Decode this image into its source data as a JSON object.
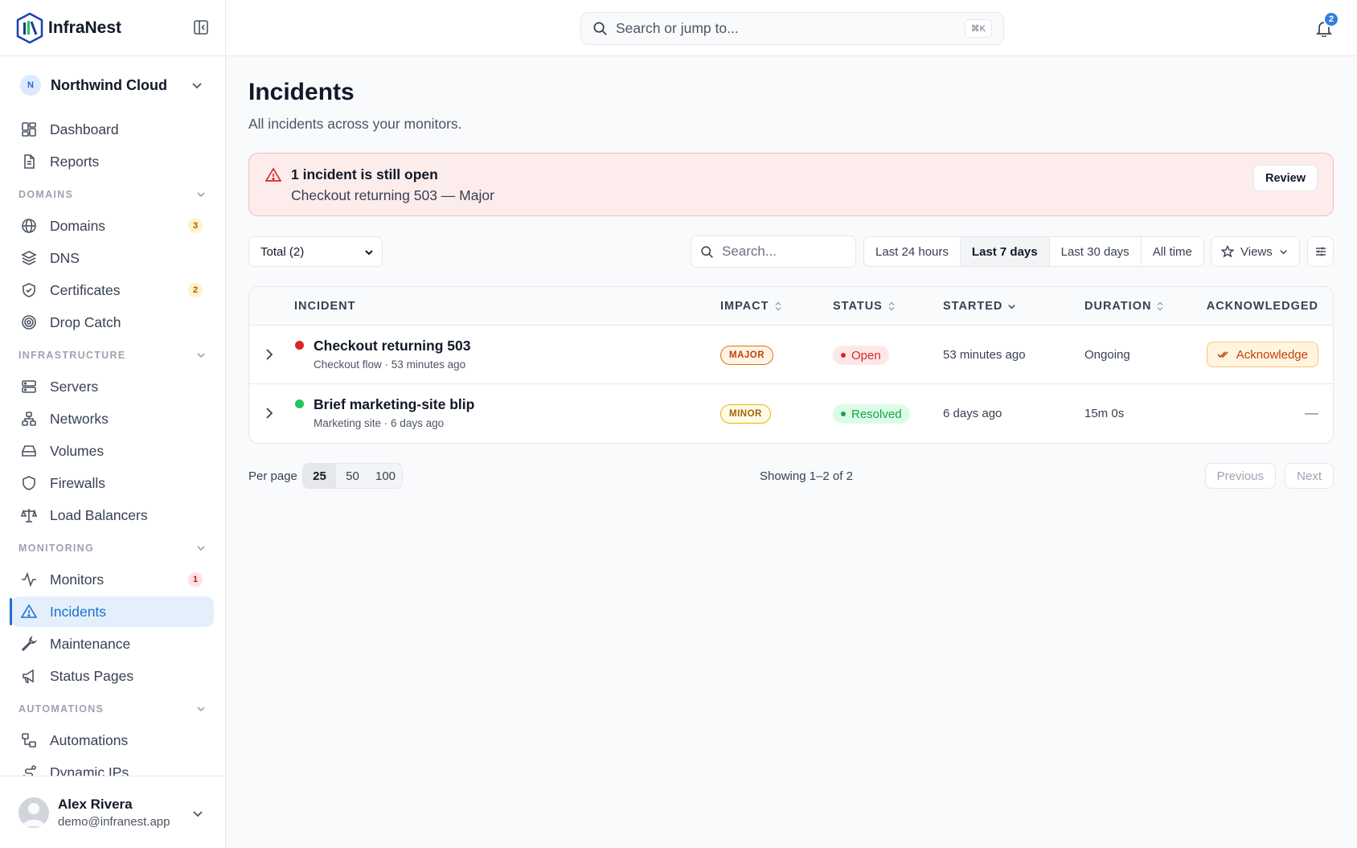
{
  "brand": {
    "name": "InfraNest"
  },
  "org": {
    "initial": "N",
    "name": "Northwind Cloud"
  },
  "nav": {
    "top": [
      {
        "label": "Dashboard",
        "icon": "dashboard-icon"
      },
      {
        "label": "Reports",
        "icon": "document-icon"
      }
    ],
    "sections": [
      {
        "title": "DOMAINS",
        "items": [
          {
            "label": "Domains",
            "icon": "globe-icon",
            "count": "3"
          },
          {
            "label": "DNS",
            "icon": "layers-icon"
          },
          {
            "label": "Certificates",
            "icon": "shield-check-icon",
            "count": "2"
          },
          {
            "label": "Drop Catch",
            "icon": "target-icon"
          }
        ]
      },
      {
        "title": "INFRASTRUCTURE",
        "items": [
          {
            "label": "Servers",
            "icon": "server-icon"
          },
          {
            "label": "Networks",
            "icon": "network-icon"
          },
          {
            "label": "Volumes",
            "icon": "drive-icon"
          },
          {
            "label": "Firewalls",
            "icon": "shield-icon"
          },
          {
            "label": "Load Balancers",
            "icon": "scale-icon"
          }
        ]
      },
      {
        "title": "MONITORING",
        "items": [
          {
            "label": "Monitors",
            "icon": "pulse-icon",
            "count": "1"
          },
          {
            "label": "Incidents",
            "icon": "warning-icon",
            "active": true
          },
          {
            "label": "Maintenance",
            "icon": "wrench-icon"
          },
          {
            "label": "Status Pages",
            "icon": "megaphone-icon"
          }
        ]
      },
      {
        "title": "AUTOMATIONS",
        "items": [
          {
            "label": "Automations",
            "icon": "workflow-icon"
          },
          {
            "label": "Dynamic IPs",
            "icon": "route-icon"
          }
        ]
      }
    ]
  },
  "user": {
    "name": "Alex Rivera",
    "email": "demo@infranest.app"
  },
  "topbar": {
    "search_placeholder": "Search or jump to...",
    "shortcut": "⌘K",
    "notifications": "2"
  },
  "page": {
    "title": "Incidents",
    "subtitle": "All incidents across your monitors."
  },
  "alert": {
    "title": "1 incident is still open",
    "text": "Checkout returning 503 — Major",
    "button": "Review"
  },
  "filters": {
    "total_label": "Total (2)",
    "search_placeholder": "Search...",
    "ranges": [
      "Last 24 hours",
      "Last 7 days",
      "Last 30 days",
      "All time"
    ],
    "selected_range": "Last 7 days",
    "views_label": "Views"
  },
  "table": {
    "columns": [
      "INCIDENT",
      "IMPACT",
      "STATUS",
      "STARTED",
      "DURATION",
      "ACKNOWLEDGED"
    ],
    "rows": [
      {
        "title": "Checkout returning 503",
        "monitor": "Checkout flow",
        "ago": "53 minutes ago",
        "impact": "MAJOR",
        "status": "Open",
        "started": "53 minutes ago",
        "duration": "Ongoing",
        "ack": "Acknowledge",
        "dot_color": "#dc2626"
      },
      {
        "title": "Brief marketing-site blip",
        "monitor": "Marketing site",
        "ago": "6 days ago",
        "impact": "MINOR",
        "status": "Resolved",
        "started": "6 days ago",
        "duration": "15m 0s",
        "ack": "—",
        "dot_color": "#22c55e"
      }
    ]
  },
  "pager": {
    "per_page_label": "Per page",
    "options": [
      "25",
      "50",
      "100"
    ],
    "selected": "25",
    "showing": "Showing 1–2 of 2",
    "previous": "Previous",
    "next": "Next"
  }
}
